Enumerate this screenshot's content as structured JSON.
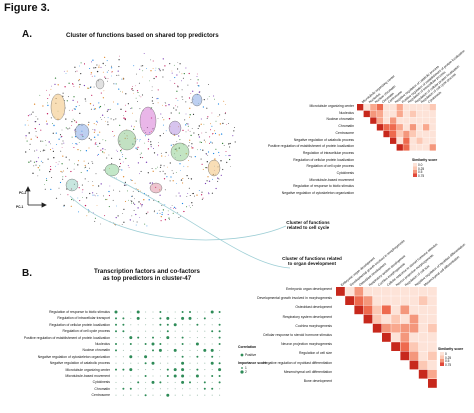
{
  "figure": {
    "title": "Figure 3."
  },
  "panelA": {
    "letter": "A.",
    "title": "Cluster of functions based on shared top predictors",
    "axes": {
      "pc2": "PC-2",
      "pc1": "PC-1"
    },
    "annotation_cell_cycle": [
      "Cluster of functions",
      "related to cell cycle"
    ],
    "annotation_organ": [
      "Cluster of functions related",
      "to organ development"
    ],
    "heatmap1": {
      "terms": [
        "Microtubule organizing center",
        "Nucleolus",
        "Nuclear chromatin",
        "Chromatin",
        "Centrosome",
        "Negative regulation of catabolic process",
        "Positive regulation of establishment of protein localization",
        "Regulation of intracellular process",
        "Regulation of cellular protein localization",
        "Regulation of cell cycle process",
        "Cytokinesis",
        "Microtubule-based movement",
        "Regulation of response to biotic stimulus",
        "Negative regulation of cytoskeleton organization"
      ],
      "legend_title": "Similarity score",
      "legend_values": [
        "0.0",
        "0.25",
        "0.5",
        "0.75"
      ]
    },
    "heatmap2": {
      "terms": [
        "Embryonic organ development",
        "Developmental growth involved in morphogenesis",
        "Osteoblast development",
        "Respiratory system development",
        "Cochlea morphogenesis",
        "Cellular response to steroid hormone stimulus",
        "Neuron projection morphogenesis",
        "Regulation of cell size",
        "Negative regulation of myoblast differentiation",
        "Mesenchymal cell differentiation",
        "Bone development"
      ],
      "legend_title": "Similarity score",
      "legend_values": [
        "0",
        "0.25",
        "0.5",
        "0.75"
      ]
    }
  },
  "panelB": {
    "letter": "B.",
    "title": [
      "Transcription factors and co-factors",
      "as top predictors in cluster-47"
    ],
    "rows": [
      "Regulation of response to biotic stimulus",
      "Regulation of intracellular transport",
      "Regulation of cellular protein localization",
      "Regulation of cell cycle process",
      "Positive regulation of establishment of protein localization",
      "Nucleolus",
      "Nuclear chromatin",
      "Negative regulation of cytoskeleton organization",
      "Negative regulation of catabolic process",
      "Microtubule organizing center",
      "Microtubule-based movement",
      "Cytokinesis",
      "Chromatin",
      "Centrosome"
    ],
    "legend": {
      "correlation_title": "Correlation",
      "correlation_value": "Positive",
      "importance_title": "Importance score",
      "importance_values": [
        "1",
        "2"
      ]
    }
  },
  "colors": {
    "heat_dark": "#c7281c",
    "heat_mid": "#ee6a4e",
    "heat_light": "#fcc8b4",
    "dot": "#2e8b57"
  }
}
